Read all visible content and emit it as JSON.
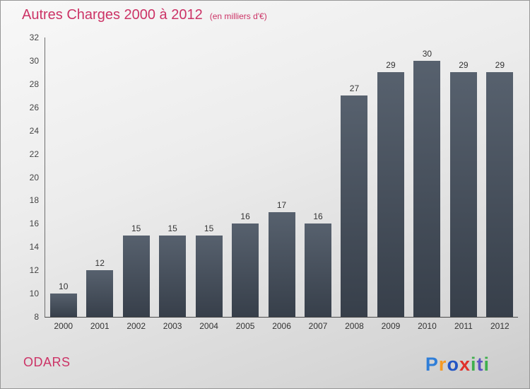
{
  "header": {
    "title": "Autres Charges 2000 à 2012",
    "subtitle": "(en milliers d'€)"
  },
  "footer": {
    "company": "ODARS",
    "logo_text": "Proxiti",
    "logo_letters": [
      {
        "char": "P",
        "color": "#2f7ed8"
      },
      {
        "char": "r",
        "color": "#f59a23"
      },
      {
        "char": "o",
        "color": "#2255c4"
      },
      {
        "char": "x",
        "color": "#e0312b"
      },
      {
        "char": "i",
        "color": "#3faf4d"
      },
      {
        "char": "t",
        "color": "#5a55c2"
      },
      {
        "char": "i",
        "color": "#3faf4d"
      }
    ]
  },
  "colors": {
    "accent_pink": "#cc3366",
    "axis_line": "#6f6f6f",
    "tick_label": "#444444",
    "value_label": "#333333",
    "background_from": "#f8f8f8",
    "background_to": "#cbcbcb"
  },
  "chart_data": {
    "type": "bar",
    "title": "Autres Charges 2000 à 2012",
    "subtitle": "(en milliers d'€)",
    "categories": [
      "2000",
      "2001",
      "2002",
      "2003",
      "2004",
      "2005",
      "2006",
      "2007",
      "2008",
      "2009",
      "2010",
      "2011",
      "2012"
    ],
    "values": [
      10,
      12,
      15,
      15,
      15,
      16,
      17,
      16,
      27,
      29,
      30,
      29,
      29
    ],
    "xlabel": "",
    "ylabel": "",
    "ylim": [
      8,
      32
    ],
    "yticks": [
      8,
      10,
      12,
      14,
      16,
      18,
      20,
      22,
      24,
      26,
      28,
      30,
      32
    ],
    "grid": false,
    "legend": false,
    "bar_color_top": "#57616e",
    "bar_color_bottom": "#373f4a",
    "value_labels_shown": true
  }
}
